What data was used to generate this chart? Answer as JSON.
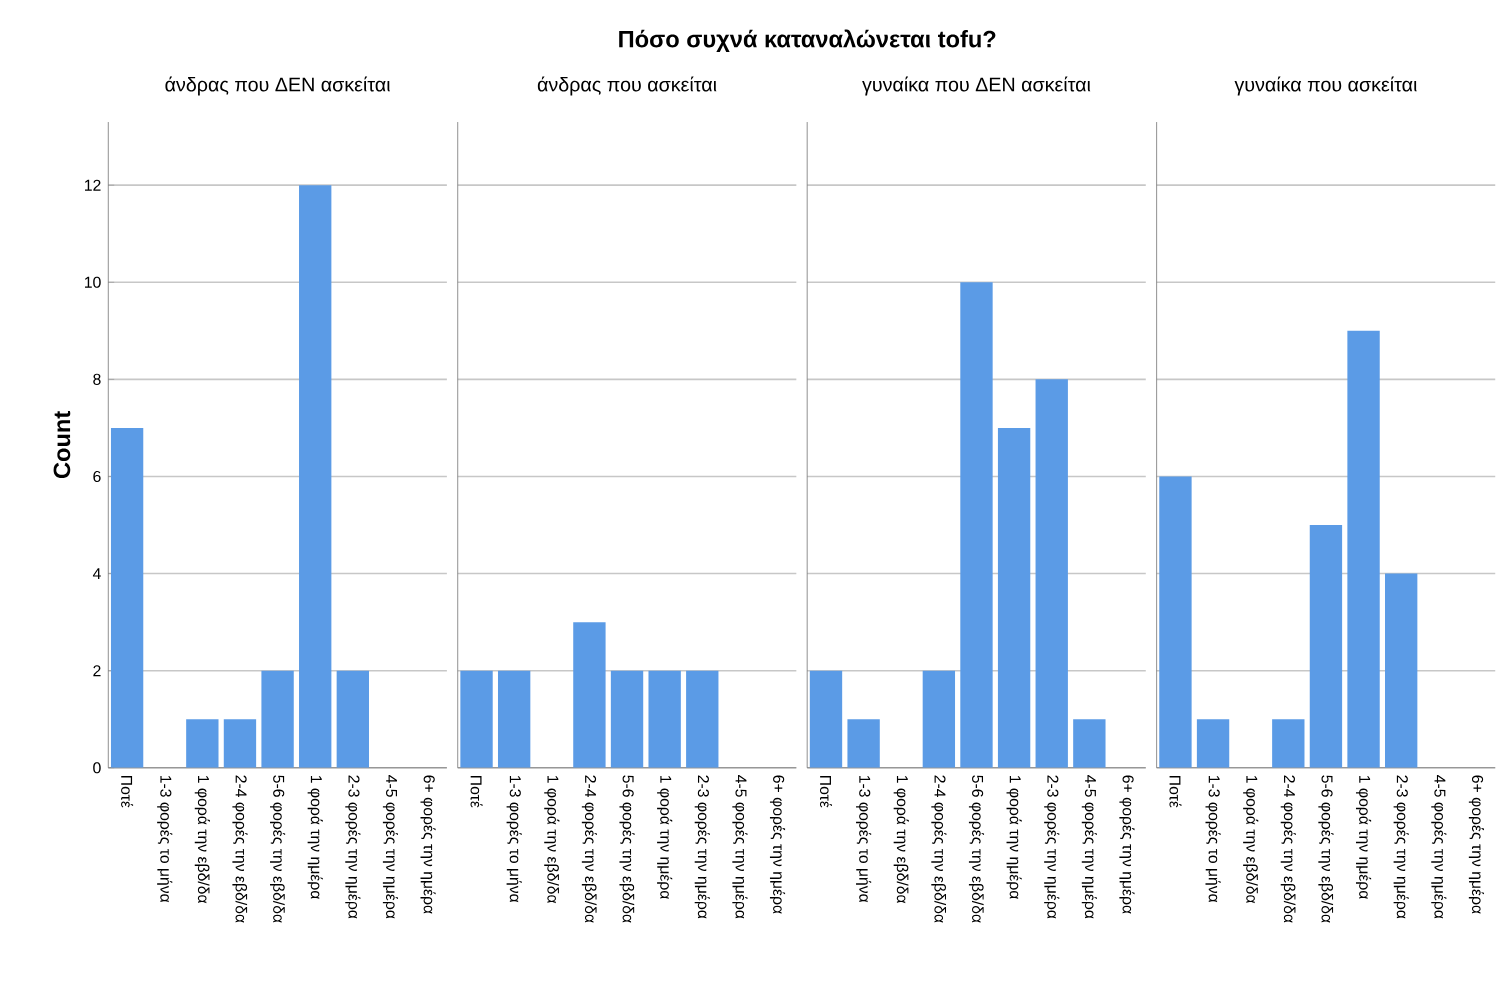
{
  "chart_data": [
    {
      "type": "bar",
      "annotations": [
        "Πόσο συχνά καταναλώνεται tofu?"
      ],
      "subtitle": "άνδρας που ΔΕΝ ασκείται",
      "ylabel": "Count",
      "categories": [
        "Ποτέ",
        "1-3 φορές το μήνα",
        "1 φορά την εβδ/δα",
        "2-4 φορές την εβδ/δα",
        "5-6 φορές την εβδ/δα",
        "1 φορά την ημέρα",
        "2-3 φορές την ημέρα",
        "4-5 φορές την ημέρα",
        "6+ φορές την ημέρα"
      ],
      "values": [
        7,
        0,
        1,
        1,
        2,
        12,
        2,
        0,
        0
      ],
      "color": "#5b9be6",
      "ylim": [
        0,
        13.3
      ],
      "yticks": [
        0,
        2,
        4,
        6,
        8,
        10,
        12
      ],
      "grid": "y"
    },
    {
      "type": "bar",
      "subtitle": "άνδρας που ασκείται",
      "categories": [
        "Ποτέ",
        "1-3 φορές το μήνα",
        "1 φορά την εβδ/δα",
        "2-4 φορές την εβδ/δα",
        "5-6 φορές την εβδ/δα",
        "1 φορά την ημέρα",
        "2-3 φορές την ημέρα",
        "4-5 φορές την ημέρα",
        "6+ φορές την ημέρα"
      ],
      "values": [
        2,
        2,
        0,
        3,
        2,
        2,
        2,
        0,
        0
      ],
      "color": "#5b9be6",
      "ylim": [
        0,
        13.3
      ],
      "yticks": [
        0,
        2,
        4,
        6,
        8,
        10,
        12
      ],
      "grid": "y",
      "tick_labels": "x"
    },
    {
      "type": "bar",
      "subtitle": "γυναίκα που ΔΕΝ ασκείται",
      "categories": [
        "Ποτέ",
        "1-3 φορές το μήνα",
        "1 φορά την εβδ/δα",
        "2-4 φορές την εβδ/δα",
        "5-6 φορές την εβδ/δα",
        "1 φορά την ημέρα",
        "2-3 φορές την ημέρα",
        "4-5 φορές την ημέρα",
        "6+ φορές την ημέρα"
      ],
      "values": [
        2,
        1,
        0,
        2,
        10,
        7,
        8,
        1,
        0
      ],
      "color": "#5b9be6",
      "ylim": [
        0,
        13.3
      ],
      "yticks": [
        0,
        2,
        4,
        6,
        8,
        10,
        12
      ],
      "grid": "y",
      "tick_labels": "x"
    },
    {
      "type": "bar",
      "subtitle": "γυναίκα που ασκείται",
      "categories": [
        "Ποτέ",
        "1-3 φορές το μήνα",
        "1 φορά την εβδ/δα",
        "2-4 φορές την εβδ/δα",
        "5-6 φορές την εβδ/δα",
        "1 φορά την ημέρα",
        "2-3 φορές την ημέρα",
        "4-5 φορές την ημέρα",
        "6+ φορές την ημέρα"
      ],
      "values": [
        6,
        1,
        0,
        1,
        5,
        9,
        4,
        0,
        0
      ],
      "color": "#5b9be6",
      "ylim": [
        0,
        13.3
      ],
      "yticks": [
        0,
        2,
        4,
        6,
        8,
        10,
        12
      ],
      "grid": "y",
      "tick_labels": "x"
    }
  ]
}
